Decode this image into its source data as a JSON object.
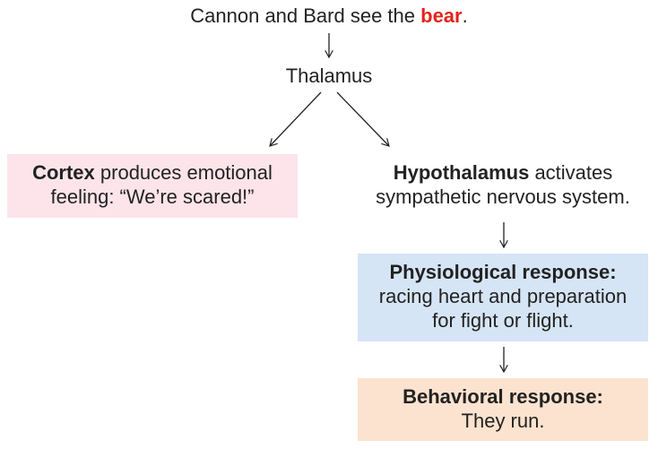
{
  "title": {
    "prefix": "Cannon and Bard see the ",
    "highlight": "bear",
    "suffix": "."
  },
  "thalamus": {
    "label": "Thalamus"
  },
  "cortex": {
    "bold": "Cortex",
    "line1_rest": " produces emotional",
    "line2": "feeling: “We’re scared!”"
  },
  "hypothalamus": {
    "bold": "Hypothalamus",
    "line1_rest": " activates",
    "line2": "sympathetic nervous system."
  },
  "physiological": {
    "heading": "Physiological response:",
    "line1": "racing heart and preparation",
    "line2": "for fight or flight."
  },
  "behavioral": {
    "heading": "Behavioral response:",
    "line1": "They run."
  },
  "colors": {
    "highlight": "#e2231a",
    "cortex_fill": "#fce4ea",
    "physiological_fill": "#d6e5f5",
    "behavioral_fill": "#fce3cf",
    "arrow": "#222222"
  }
}
